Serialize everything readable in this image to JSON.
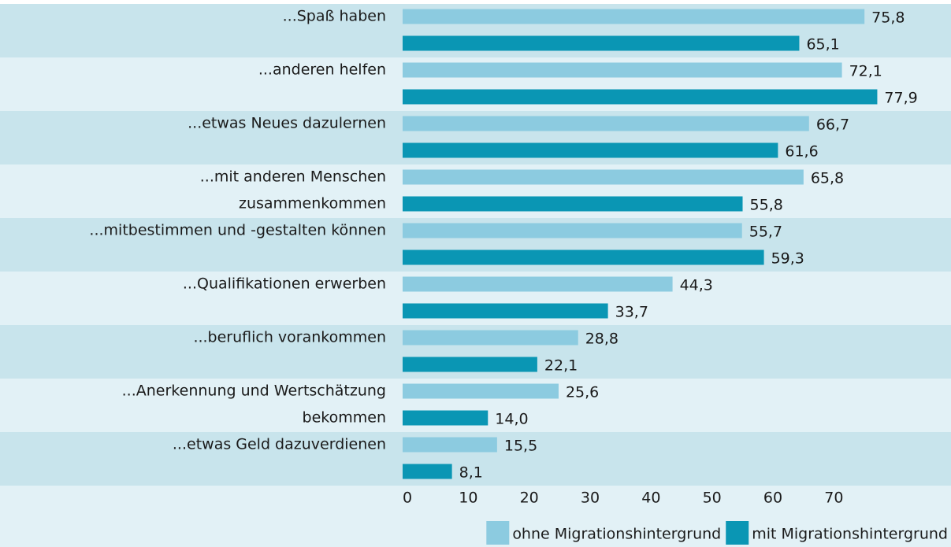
{
  "chart_data": {
    "type": "bar",
    "orientation": "horizontal",
    "categories": [
      [
        "...Spaß haben"
      ],
      [
        "...anderen helfen"
      ],
      [
        "...etwas Neues dazulernen"
      ],
      [
        "...mit anderen Menschen",
        "zusammenkommen"
      ],
      [
        "...mitbestimmen und -gestalten können"
      ],
      [
        "...Qualifikationen erwerben"
      ],
      [
        "...beruflich vorankommen"
      ],
      [
        "...Anerkennung und Wertschätzung",
        "bekommen"
      ],
      [
        "...etwas Geld dazuverdienen"
      ]
    ],
    "series": [
      {
        "name": "ohne Migrationshintergrund",
        "color": "#8ccbe0",
        "values": [
          75.8,
          72.1,
          66.7,
          65.8,
          55.7,
          44.3,
          28.8,
          25.6,
          15.5
        ],
        "value_labels": [
          "75,8",
          "72,1",
          "66,7",
          "65,8",
          "55,7",
          "44,3",
          "28,8",
          "25,6",
          "15,5"
        ]
      },
      {
        "name": "mit Migrationshintergrund",
        "color": "#0a96b4",
        "values": [
          65.1,
          77.9,
          61.6,
          55.8,
          59.3,
          33.7,
          22.1,
          14.0,
          8.1
        ],
        "value_labels": [
          "65,1",
          "77,9",
          "61,6",
          "55,8",
          "59,3",
          "33,7",
          "22,1",
          "14,0",
          "8,1"
        ]
      }
    ],
    "xlim": [
      0,
      90
    ],
    "xticks": [
      0,
      10,
      20,
      30,
      40,
      50,
      60,
      70
    ],
    "grid": false,
    "legend": "bottom-right"
  }
}
